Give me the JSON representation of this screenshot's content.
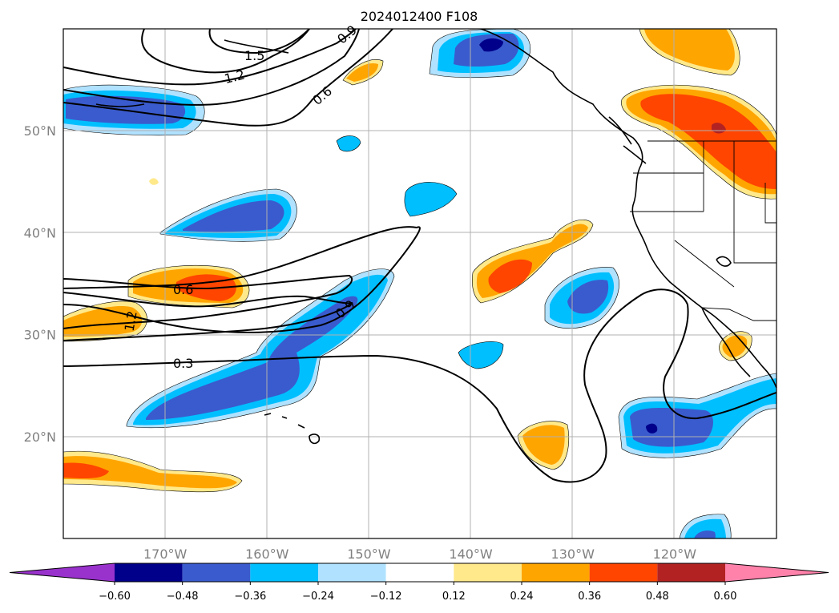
{
  "chart_data": {
    "type": "contour map",
    "title": "2024012400 F108",
    "projection": "plate carree",
    "lon_range": [
      -180,
      -110
    ],
    "lat_range": [
      10,
      60
    ],
    "lon_ticks": [
      -170,
      -160,
      -150,
      -140,
      -130,
      -120
    ],
    "lat_ticks": [
      20,
      30,
      40,
      50
    ],
    "lon_tick_labels": [
      "170°W",
      "160°W",
      "150°W",
      "140°W",
      "130°W",
      "120°W"
    ],
    "lat_tick_labels": [
      "20°N",
      "30°N",
      "40°N",
      "50°N"
    ],
    "grid": true,
    "colorbar": {
      "orientation": "horizontal",
      "extend": "both",
      "levels": [
        -0.6,
        -0.48,
        -0.36,
        -0.24,
        -0.12,
        0.12,
        0.24,
        0.36,
        0.48,
        0.6
      ],
      "tick_labels": [
        "−0.60",
        "−0.48",
        "−0.36",
        "−0.24",
        "−0.12",
        "0.12",
        "0.24",
        "0.36",
        "0.48",
        "0.60"
      ],
      "colors": [
        "#9932cc",
        "#00008b",
        "#3a5bcd",
        "#00bfff",
        "#b0e2ff",
        "#ffffff",
        "#ffe98a",
        "#ffa500",
        "#ff4500",
        "#b22222",
        "#ff82ab"
      ]
    },
    "contour_labels": [
      "1.5",
      "1.2",
      "0.9",
      "0.6",
      "0.6",
      "0.9",
      "1.2",
      "0.3"
    ],
    "shaded_features": [
      {
        "lon": -165,
        "lat": 51.5,
        "value": -0.4
      },
      {
        "lon": -162,
        "lat": 40.5,
        "value": -0.4
      },
      {
        "lon": -165,
        "lat": 34.5,
        "value": 0.38
      },
      {
        "lon": -175,
        "lat": 31,
        "value": 0.3
      },
      {
        "lon": -154,
        "lat": 31.5,
        "value": -0.4
      },
      {
        "lon": -162,
        "lat": 24,
        "value": -0.4
      },
      {
        "lon": -172,
        "lat": 16.5,
        "value": 0.36
      },
      {
        "lon": -142,
        "lat": 43.5,
        "value": -0.28
      },
      {
        "lon": -150,
        "lat": 48.5,
        "value": -0.28
      },
      {
        "lon": -142,
        "lat": 57,
        "value": -0.45
      },
      {
        "lon": -153,
        "lat": 56.5,
        "value": 0.28
      },
      {
        "lon": -137,
        "lat": 35.5,
        "value": 0.38
      },
      {
        "lon": -131,
        "lat": 40,
        "value": 0.28
      },
      {
        "lon": -128.5,
        "lat": 34,
        "value": -0.4
      },
      {
        "lon": -139,
        "lat": 28,
        "value": -0.28
      },
      {
        "lon": -133,
        "lat": 19.5,
        "value": 0.28
      },
      {
        "lon": -121.5,
        "lat": 20.5,
        "value": -0.45
      },
      {
        "lon": -111,
        "lat": 23.5,
        "value": -0.28
      },
      {
        "lon": -117.5,
        "lat": 11.5,
        "value": -0.36
      },
      {
        "lon": -116,
        "lat": 52,
        "value": 0.42
      },
      {
        "lon": -122,
        "lat": 58.5,
        "value": 0.28
      },
      {
        "lon": -114.5,
        "lat": 29,
        "value": 0.3
      },
      {
        "lon": -169,
        "lat": 45,
        "value": 0.15
      }
    ]
  }
}
